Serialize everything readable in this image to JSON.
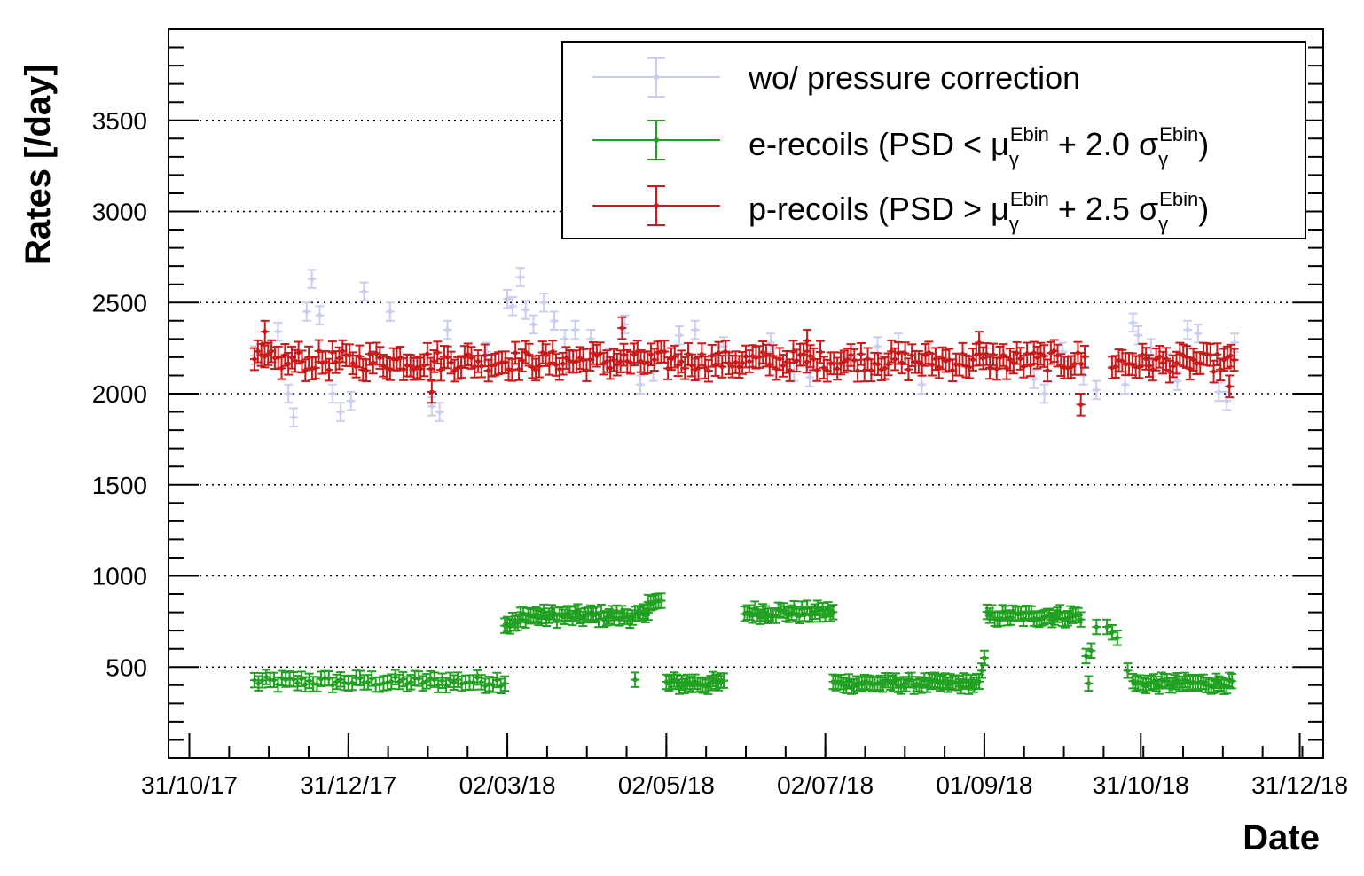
{
  "chart_data": {
    "type": "scatter",
    "xlabel": "Date",
    "ylabel": "Rates [/day]",
    "x_axis_type": "date",
    "xlim": [
      "2017-10-23",
      "2019-01-09"
    ],
    "ylim": [
      0,
      4000
    ],
    "x_tick_labels": [
      {
        "date": "2017-10-31",
        "label": "31/10/17"
      },
      {
        "date": "2017-12-31",
        "label": "31/12/17"
      },
      {
        "date": "2018-03-02",
        "label": "02/03/18"
      },
      {
        "date": "2018-05-02",
        "label": "02/05/18"
      },
      {
        "date": "2018-07-02",
        "label": "02/07/18"
      },
      {
        "date": "2018-09-01",
        "label": "01/09/18"
      },
      {
        "date": "2018-10-31",
        "label": "31/10/18"
      },
      {
        "date": "2018-12-31",
        "label": "31/12/18"
      }
    ],
    "y_ticks": [
      500,
      1000,
      1500,
      2000,
      2500,
      3000,
      3500
    ],
    "grid": "horizontal dotted at y major ticks",
    "legend_position": "top-right",
    "series": [
      {
        "name": "wo/ pressure correction",
        "color": "#c9cdf2",
        "error": 50,
        "points": [
          [
            "2017-11-25",
            2210
          ],
          [
            "2017-12-04",
            2340
          ],
          [
            "2017-12-08",
            2000
          ],
          [
            "2017-12-10",
            1870
          ],
          [
            "2017-12-15",
            2450
          ],
          [
            "2017-12-17",
            2630
          ],
          [
            "2017-12-20",
            2430
          ],
          [
            "2017-12-25",
            2000
          ],
          [
            "2017-12-28",
            1900
          ],
          [
            "2018-01-01",
            1960
          ],
          [
            "2018-01-06",
            2560
          ],
          [
            "2018-01-12",
            2200
          ],
          [
            "2018-01-16",
            2450
          ],
          [
            "2018-01-25",
            2130
          ],
          [
            "2018-02-01",
            1930
          ],
          [
            "2018-02-04",
            1900
          ],
          [
            "2018-02-07",
            2350
          ],
          [
            "2018-02-22",
            2230
          ],
          [
            "2018-03-02",
            2520
          ],
          [
            "2018-03-04",
            2480
          ],
          [
            "2018-03-07",
            2640
          ],
          [
            "2018-03-09",
            2460
          ],
          [
            "2018-03-12",
            2380
          ],
          [
            "2018-03-16",
            2500
          ],
          [
            "2018-03-20",
            2400
          ],
          [
            "2018-03-24",
            2300
          ],
          [
            "2018-03-28",
            2350
          ],
          [
            "2018-04-03",
            2300
          ],
          [
            "2018-04-10",
            2200
          ],
          [
            "2018-04-16",
            2380
          ],
          [
            "2018-04-22",
            2050
          ],
          [
            "2018-04-27",
            2120
          ],
          [
            "2018-05-07",
            2320
          ],
          [
            "2018-05-13",
            2350
          ],
          [
            "2018-05-24",
            2260
          ],
          [
            "2018-06-04",
            2200
          ],
          [
            "2018-06-11",
            2280
          ],
          [
            "2018-06-20",
            2120
          ],
          [
            "2018-06-26",
            2090
          ],
          [
            "2018-07-10",
            2200
          ],
          [
            "2018-07-22",
            2260
          ],
          [
            "2018-07-30",
            2280
          ],
          [
            "2018-08-08",
            2050
          ],
          [
            "2018-08-20",
            2120
          ],
          [
            "2018-09-02",
            2200
          ],
          [
            "2018-09-12",
            2160
          ],
          [
            "2018-09-20",
            2080
          ],
          [
            "2018-09-24",
            2000
          ],
          [
            "2018-10-01",
            2230
          ],
          [
            "2018-10-09",
            2100
          ],
          [
            "2018-10-14",
            2020
          ],
          [
            "2018-10-25",
            2050
          ],
          [
            "2018-10-28",
            2390
          ],
          [
            "2018-10-30",
            2320
          ],
          [
            "2018-11-04",
            2250
          ],
          [
            "2018-11-10",
            2170
          ],
          [
            "2018-11-14",
            2070
          ],
          [
            "2018-11-18",
            2350
          ],
          [
            "2018-11-22",
            2330
          ],
          [
            "2018-11-30",
            2010
          ],
          [
            "2018-12-03",
            1960
          ],
          [
            "2018-12-06",
            2280
          ]
        ]
      },
      {
        "name": "e-recoils (PSD < μγEbin + 2.0 σγEbin)",
        "color": "#21a121",
        "error": 40,
        "segments": [
          {
            "start": "2017-11-25",
            "end": "2018-03-01",
            "step": 1.5,
            "base": 420,
            "amp": 25
          },
          {
            "start": "2018-03-01",
            "end": "2018-03-07",
            "step": 1,
            "base": 740,
            "amp": 30
          },
          {
            "start": "2018-03-07",
            "end": "2018-04-25",
            "step": 1,
            "base": 780,
            "amp": 25
          },
          {
            "start": "2018-04-25",
            "end": "2018-04-30",
            "step": 1,
            "base": 860,
            "amp": 10
          },
          {
            "start": "2018-05-02",
            "end": "2018-05-24",
            "step": 1,
            "base": 410,
            "amp": 25
          },
          {
            "start": "2018-06-01",
            "end": "2018-07-05",
            "step": 1,
            "base": 800,
            "amp": 25
          },
          {
            "start": "2018-07-05",
            "end": "2018-08-30",
            "step": 1,
            "base": 410,
            "amp": 20
          },
          {
            "start": "2018-09-02",
            "end": "2018-10-08",
            "step": 1,
            "base": 780,
            "amp": 25
          },
          {
            "start": "2018-10-28",
            "end": "2018-12-05",
            "step": 1,
            "base": 410,
            "amp": 20
          }
        ],
        "points": [
          [
            "2018-04-20",
            430
          ],
          [
            "2018-08-31",
            480
          ],
          [
            "2018-09-01",
            550
          ],
          [
            "2018-10-10",
            560
          ],
          [
            "2018-10-12",
            590
          ],
          [
            "2018-10-11",
            410
          ],
          [
            "2018-10-14",
            720
          ],
          [
            "2018-10-18",
            720
          ],
          [
            "2018-10-20",
            690
          ],
          [
            "2018-10-22",
            660
          ],
          [
            "2018-10-26",
            480
          ]
        ]
      },
      {
        "name": "p-recoils (PSD > μγEbin + 2.5 σγEbin)",
        "color": "#cc1a1a",
        "error": 60,
        "segments": [
          {
            "start": "2017-11-25",
            "end": "2018-10-10",
            "step": 1.3,
            "base": 2180,
            "amp": 55
          },
          {
            "start": "2018-10-20",
            "end": "2018-12-06",
            "step": 1.3,
            "base": 2170,
            "amp": 50
          }
        ],
        "points": [
          [
            "2017-11-29",
            2340
          ],
          [
            "2018-02-01",
            2010
          ],
          [
            "2018-04-15",
            2360
          ],
          [
            "2018-06-25",
            2290
          ],
          [
            "2018-08-30",
            2280
          ],
          [
            "2018-10-08",
            1940
          ],
          [
            "2018-12-04",
            2040
          ]
        ]
      }
    ]
  },
  "legend": {
    "entries": [
      {
        "main": "wo/ pressure correction"
      },
      {
        "main_a": "e-recoils (PSD < μ",
        "sub1": "γ",
        "sup1": "Ebin",
        "main_b": " + 2.0 σ",
        "sub2": "γ",
        "sup2": "Ebin",
        "main_c": ")"
      },
      {
        "main_a": "p-recoils (PSD > μ",
        "sub1": "γ",
        "sup1": "Ebin",
        "main_b": " + 2.5 σ",
        "sub2": "γ",
        "sup2": "Ebin",
        "main_c": ")"
      }
    ]
  }
}
